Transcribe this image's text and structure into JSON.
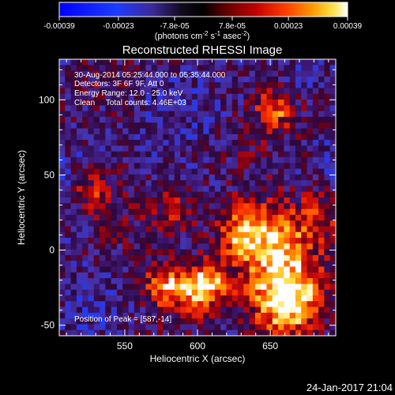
{
  "colorbar": {
    "tick_labels": [
      "-0.00039",
      "-0.00023",
      "-7.8e-05",
      "7.8e-05",
      "0.00023",
      "0.00039"
    ],
    "tick_values": [
      -0.00039,
      -0.00023,
      -7.8e-05,
      7.8e-05,
      0.00023,
      0.00039
    ],
    "range": [
      -0.00039,
      0.00039
    ],
    "colormap": "rhessi-blue-black-red-yellow-white",
    "units_parts": [
      "(photons cm",
      "-2",
      " s",
      "-1",
      " asec",
      "-2",
      ")"
    ]
  },
  "chart_data": {
    "type": "heatmap",
    "title": "Reconstructed RHESSI Image",
    "xlabel": "Heliocentric X (arcsec)",
    "ylabel": "Heliocentric Y (arcsec)",
    "xlim": [
      505,
      695
    ],
    "ylim": [
      -57,
      127
    ],
    "xticks": [
      550,
      600,
      650
    ],
    "yticks": [
      -50,
      0,
      50,
      100
    ],
    "peak_position": [
      587,
      -14
    ],
    "annotations": [
      "30-Aug-2014 05:25:44.000 to 05:35:44.000",
      "Detectors: 3F 6F 9F, Att 0",
      "Energy Range: 12.0 - 25.0 keV",
      "Clean     Total counts: 4.46E+03",
      "Position of Peak = [587,-14]"
    ],
    "colors": {
      "background": "#000000",
      "axes": "#ffffff",
      "text": "#ffffff"
    }
  },
  "footer": {
    "timestamp": "24-Jan-2017 21:04"
  }
}
